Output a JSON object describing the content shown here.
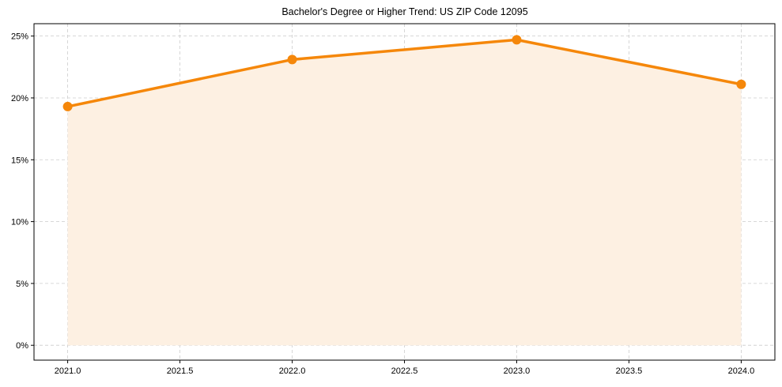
{
  "chart_data": {
    "type": "area",
    "title": "Bachelor's Degree or Higher Trend: US ZIP Code 12095",
    "xlabel": "",
    "ylabel": "",
    "x": [
      2021,
      2022,
      2023,
      2024
    ],
    "series": [
      {
        "name": "Bachelor's Degree or Higher",
        "values": [
          19.3,
          23.1,
          24.7,
          21.1
        ],
        "unit": "%"
      }
    ],
    "xlim": [
      2020.85,
      2024.15
    ],
    "ylim": [
      -1.2,
      26.0
    ],
    "x_ticks": [
      "2021.0",
      "2021.5",
      "2022.0",
      "2022.5",
      "2023.0",
      "2023.5",
      "2024.0"
    ],
    "x_tick_values": [
      2021.0,
      2021.5,
      2022.0,
      2022.5,
      2023.0,
      2023.5,
      2024.0
    ],
    "y_ticks": [
      "0%",
      "5%",
      "10%",
      "15%",
      "20%",
      "25%"
    ],
    "y_tick_values": [
      0,
      5,
      10,
      15,
      20,
      25
    ],
    "grid": true,
    "legend": null,
    "colors": {
      "line": "#f5870a",
      "fill": "#fdf0e2",
      "grid": "#cccccc",
      "axis": "#000000"
    }
  }
}
